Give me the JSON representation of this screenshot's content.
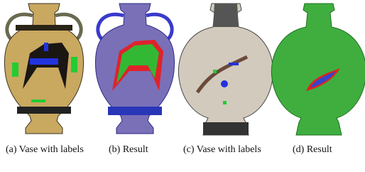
{
  "figure": {
    "captions": [
      "(a) Vase with labels",
      "(b) Result",
      "(c) Vase with labels",
      "(d) Result"
    ]
  }
}
